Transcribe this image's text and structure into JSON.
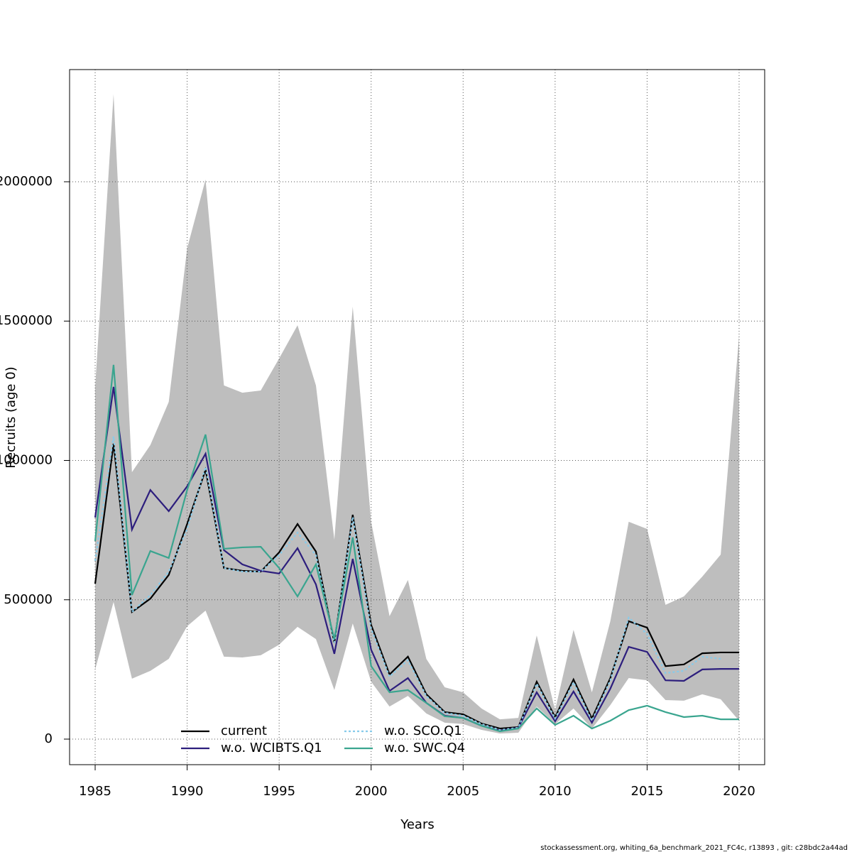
{
  "chart_data": {
    "type": "line",
    "xlabel": "Years",
    "ylabel": "Recruits (age 0)",
    "footer": "stockassessment.org, whiting_6a_benchmark_2021_FC4c, r13893 , git: c28bdc2a44ad",
    "x": [
      1985,
      1986,
      1987,
      1988,
      1989,
      1990,
      1991,
      1992,
      1993,
      1994,
      1995,
      1996,
      1997,
      1998,
      1999,
      2000,
      2001,
      2002,
      2003,
      2004,
      2005,
      2006,
      2007,
      2008,
      2009,
      2010,
      2011,
      2012,
      2013,
      2014,
      2015,
      2016,
      2017,
      2018,
      2019,
      2020
    ],
    "band": {
      "color": "#bebebe",
      "upper": [
        1264000,
        2314000,
        958000,
        1055000,
        1210000,
        1761000,
        2008000,
        1269000,
        1243000,
        1251000,
        1366000,
        1485000,
        1269000,
        716000,
        1552000,
        780000,
        441000,
        571000,
        288000,
        186000,
        168000,
        110000,
        71000,
        76000,
        372000,
        104000,
        392000,
        168000,
        423000,
        780000,
        754000,
        482000,
        512000,
        583000,
        662000,
        1447000
      ],
      "lower": [
        250000,
        492000,
        217000,
        245000,
        288000,
        405000,
        461000,
        296000,
        293000,
        301000,
        339000,
        403000,
        359000,
        176000,
        415000,
        206000,
        117000,
        155000,
        92000,
        59000,
        54000,
        33000,
        20000,
        23000,
        117000,
        54000,
        110000,
        38000,
        122000,
        219000,
        211000,
        140000,
        138000,
        161000,
        143000,
        66000
      ]
    },
    "series": [
      {
        "name": "current",
        "color": "#000000",
        "linestyle": "solid",
        "values": [
          558000,
          1060000,
          456000,
          504000,
          589000,
          772000,
          966000,
          614000,
          604000,
          601000,
          670000,
          772000,
          673000,
          346000,
          805000,
          410000,
          232000,
          296000,
          161000,
          97000,
          89000,
          56000,
          38000,
          43000,
          206000,
          79000,
          214000,
          74000,
          219000,
          423000,
          400000,
          262000,
          268000,
          308000,
          311000,
          311000
        ]
      },
      {
        "name": "w.o. WCIBTS.Q1",
        "color": "#2d1e7d",
        "linestyle": "solid",
        "values": [
          795000,
          1264000,
          752000,
          894000,
          818000,
          907000,
          1024000,
          678000,
          627000,
          604000,
          594000,
          685000,
          555000,
          306000,
          647000,
          321000,
          173000,
          219000,
          130000,
          84000,
          76000,
          48000,
          31000,
          41000,
          168000,
          64000,
          171000,
          59000,
          181000,
          331000,
          313000,
          211000,
          209000,
          250000,
          252000,
          252000
        ]
      },
      {
        "name": "w.o. SCO.Q1",
        "color": "#87cbea",
        "linestyle": "dotted",
        "values": [
          640000,
          1086000,
          456000,
          517000,
          601000,
          754000,
          976000,
          614000,
          601000,
          601000,
          660000,
          741000,
          660000,
          346000,
          797000,
          397000,
          224000,
          283000,
          155000,
          94000,
          84000,
          54000,
          33000,
          41000,
          199000,
          74000,
          204000,
          66000,
          211000,
          436000,
          377000,
          237000,
          245000,
          296000,
          288000,
          null
        ]
      },
      {
        "name": "w.o. SWC.Q4",
        "color": "#3aa58f",
        "linestyle": "solid",
        "values": [
          711000,
          1343000,
          517000,
          675000,
          650000,
          894000,
          1093000,
          683000,
          688000,
          690000,
          614000,
          512000,
          627000,
          359000,
          724000,
          262000,
          168000,
          176000,
          130000,
          82000,
          76000,
          48000,
          28000,
          38000,
          110000,
          51000,
          84000,
          38000,
          66000,
          104000,
          120000,
          97000,
          79000,
          84000,
          71000,
          71000
        ]
      }
    ],
    "xlim": [
      1983.61,
      2021.39
    ],
    "xticks": [
      1985,
      1990,
      1995,
      2000,
      2005,
      2010,
      2015,
      2020
    ],
    "ylim": [
      -91700,
      2402500
    ],
    "yticks": [
      0,
      500000,
      1000000,
      1500000,
      2000000
    ],
    "grid": true,
    "legend": "bottom"
  }
}
